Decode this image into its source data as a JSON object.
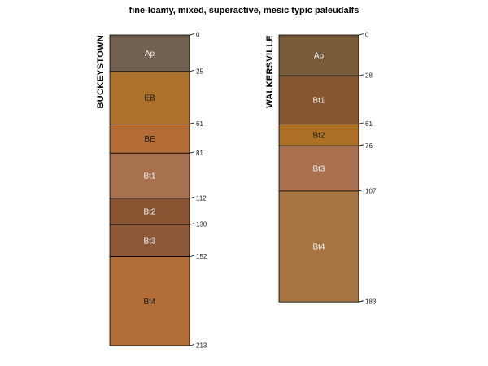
{
  "title": "fine-loamy, mixed, superactive, mesic typic paleudalfs",
  "max_depth": 213,
  "profiles": [
    {
      "name": "BUCKEYSTOWN",
      "horizons": [
        {
          "name": "Ap",
          "top": 0,
          "bottom": 25,
          "color": "#726151",
          "text_color": "#f2f2f2"
        },
        {
          "name": "EB",
          "top": 25,
          "bottom": 61,
          "color": "#ac712c",
          "text_color": "#1a1a1a"
        },
        {
          "name": "BE",
          "top": 61,
          "bottom": 81,
          "color": "#b46e35",
          "text_color": "#1a1a1a"
        },
        {
          "name": "Bt1",
          "top": 81,
          "bottom": 112,
          "color": "#a7714f",
          "text_color": "#f2f2f2"
        },
        {
          "name": "Bt2",
          "top": 112,
          "bottom": 130,
          "color": "#8a5533",
          "text_color": "#f2f2f2"
        },
        {
          "name": "Bt3",
          "top": 130,
          "bottom": 152,
          "color": "#8c5838",
          "text_color": "#f2f2f2"
        },
        {
          "name": "Bt4",
          "top": 152,
          "bottom": 213,
          "color": "#b36d36",
          "text_color": "#1a1a1a"
        }
      ]
    },
    {
      "name": "WALKERSVILLE",
      "horizons": [
        {
          "name": "Ap",
          "top": 0,
          "bottom": 28,
          "color": "#7a5c3b",
          "text_color": "#f2f2f2"
        },
        {
          "name": "Bt1",
          "top": 28,
          "bottom": 61,
          "color": "#865630",
          "text_color": "#f2f2f2"
        },
        {
          "name": "Bt2",
          "top": 61,
          "bottom": 76,
          "color": "#ad7025",
          "text_color": "#1a1a1a"
        },
        {
          "name": "Bt3",
          "top": 76,
          "bottom": 107,
          "color": "#a8704f",
          "text_color": "#f2f2f2"
        },
        {
          "name": "Bt4",
          "top": 107,
          "bottom": 183,
          "color": "#a57442",
          "text_color": "#f2f2f2"
        }
      ]
    }
  ]
}
